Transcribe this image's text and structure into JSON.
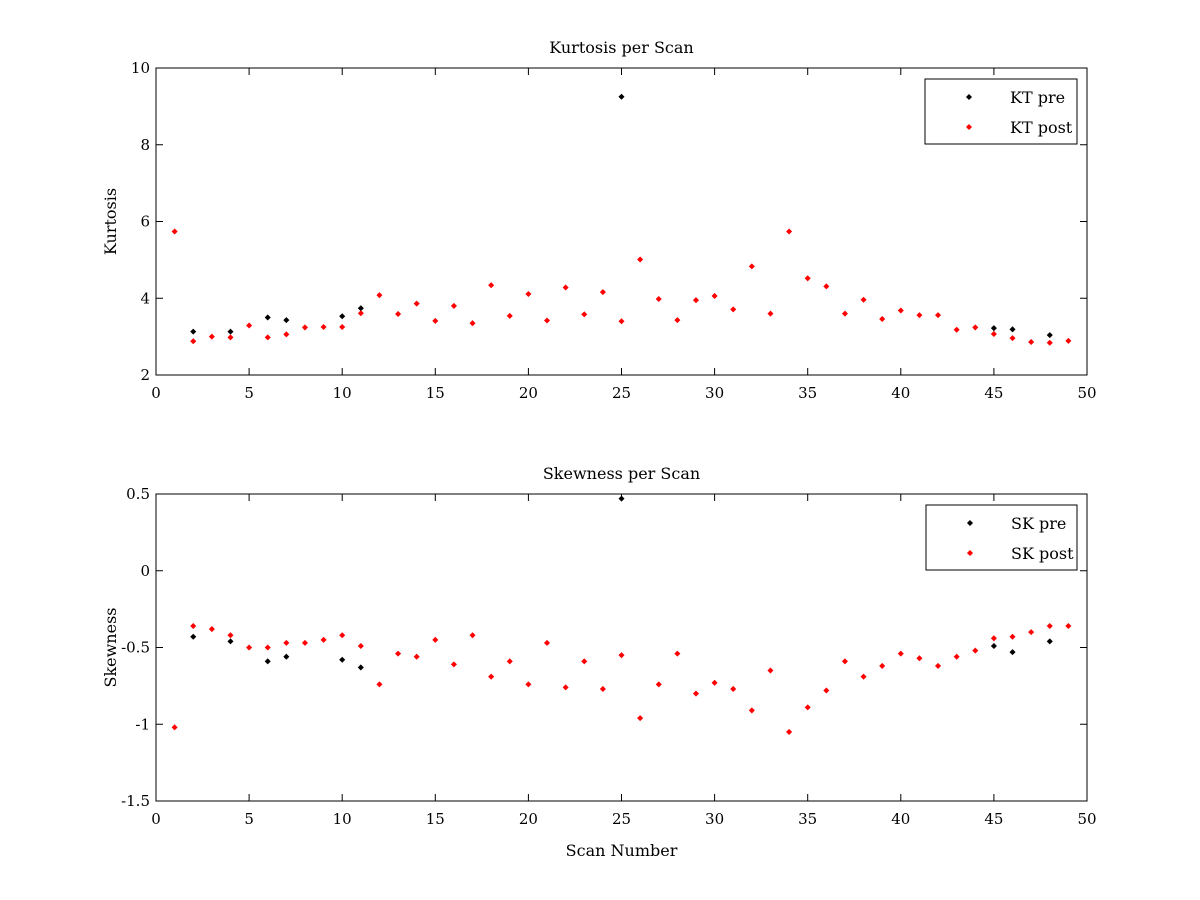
{
  "chart_data": [
    {
      "type": "scatter",
      "title": "Kurtosis per Scan",
      "xlabel": "",
      "ylabel": "Kurtosis",
      "xlim": [
        0,
        50
      ],
      "ylim": [
        2,
        10
      ],
      "xticks": [
        0,
        5,
        10,
        15,
        20,
        25,
        30,
        35,
        40,
        45,
        50
      ],
      "yticks": [
        2,
        4,
        6,
        8,
        10
      ],
      "legend_position": "top-right",
      "series": [
        {
          "name": "KT pre",
          "color": "#000000",
          "x": [
            2,
            4,
            6,
            7,
            10,
            11,
            25,
            45,
            46,
            48
          ],
          "y": [
            3.13,
            3.13,
            3.5,
            3.43,
            3.53,
            3.74,
            9.25,
            3.22,
            3.19,
            3.04
          ]
        },
        {
          "name": "KT post",
          "color": "#ff0000",
          "x": [
            1,
            2,
            3,
            4,
            5,
            6,
            7,
            8,
            9,
            10,
            11,
            12,
            13,
            14,
            15,
            16,
            17,
            18,
            19,
            20,
            21,
            22,
            23,
            24,
            25,
            26,
            27,
            28,
            29,
            30,
            31,
            32,
            33,
            34,
            35,
            36,
            37,
            38,
            39,
            40,
            41,
            42,
            43,
            44,
            45,
            46,
            47,
            48,
            49
          ],
          "y": [
            5.74,
            2.88,
            3.0,
            2.98,
            3.29,
            2.98,
            3.06,
            3.24,
            3.25,
            3.25,
            3.61,
            4.08,
            3.59,
            3.86,
            3.41,
            3.8,
            3.35,
            4.34,
            3.54,
            4.11,
            3.42,
            4.28,
            3.58,
            4.16,
            3.4,
            5.01,
            3.98,
            3.43,
            3.95,
            4.06,
            3.71,
            4.83,
            3.6,
            5.74,
            4.52,
            4.31,
            3.6,
            3.96,
            3.46,
            3.68,
            3.56,
            3.56,
            3.18,
            3.24,
            3.07,
            2.96,
            2.86,
            2.84,
            2.89
          ]
        }
      ]
    },
    {
      "type": "scatter",
      "title": "Skewness per Scan",
      "xlabel": "Scan Number",
      "ylabel": "Skewness",
      "xlim": [
        0,
        50
      ],
      "ylim": [
        -1.5,
        0.5
      ],
      "xticks": [
        0,
        5,
        10,
        15,
        20,
        25,
        30,
        35,
        40,
        45,
        50
      ],
      "yticks": [
        -1.5,
        -1,
        -0.5,
        0,
        0.5
      ],
      "legend_position": "top-right",
      "series": [
        {
          "name": "SK pre",
          "color": "#000000",
          "x": [
            2,
            4,
            6,
            7,
            10,
            11,
            25,
            45,
            46,
            48
          ],
          "y": [
            -0.43,
            -0.46,
            -0.59,
            -0.56,
            -0.58,
            -0.63,
            0.47,
            -0.49,
            -0.53,
            -0.46
          ]
        },
        {
          "name": "SK post",
          "color": "#ff0000",
          "x": [
            1,
            2,
            3,
            4,
            5,
            6,
            7,
            8,
            9,
            10,
            11,
            12,
            13,
            14,
            15,
            16,
            17,
            18,
            19,
            20,
            21,
            22,
            23,
            24,
            25,
            26,
            27,
            28,
            29,
            30,
            31,
            32,
            33,
            34,
            35,
            36,
            37,
            38,
            39,
            40,
            41,
            42,
            43,
            44,
            45,
            46,
            47,
            48,
            49
          ],
          "y": [
            -1.02,
            -0.36,
            -0.38,
            -0.42,
            -0.5,
            -0.5,
            -0.47,
            -0.47,
            -0.45,
            -0.42,
            -0.49,
            -0.74,
            -0.54,
            -0.56,
            -0.45,
            -0.61,
            -0.42,
            -0.69,
            -0.59,
            -0.74,
            -0.47,
            -0.76,
            -0.59,
            -0.77,
            -0.55,
            -0.96,
            -0.74,
            -0.54,
            -0.8,
            -0.73,
            -0.77,
            -0.91,
            -0.65,
            -1.05,
            -0.89,
            -0.78,
            -0.59,
            -0.69,
            -0.62,
            -0.54,
            -0.57,
            -0.62,
            -0.56,
            -0.52,
            -0.44,
            -0.43,
            -0.4,
            -0.36,
            -0.36
          ]
        }
      ]
    }
  ]
}
